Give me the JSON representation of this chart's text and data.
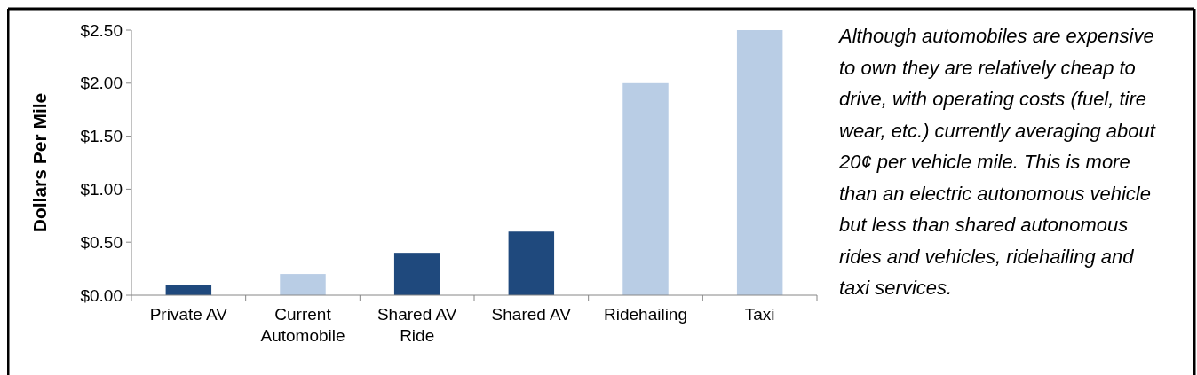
{
  "chart_data": {
    "type": "bar",
    "ylabel": "Dollars Per Mile",
    "categories": [
      "Private AV",
      "Current Automobile",
      "Shared AV Ride",
      "Shared AV",
      "Ridehailing",
      "Taxi"
    ],
    "values": [
      0.1,
      0.2,
      0.4,
      0.6,
      2.0,
      2.5
    ],
    "colors": [
      "#1f497d",
      "#b9cde5",
      "#1f497d",
      "#1f497d",
      "#b9cde5",
      "#b9cde5"
    ],
    "ylim": [
      0,
      2.5
    ],
    "yticks": [
      {
        "value": 0,
        "label": "$0.00"
      },
      {
        "value": 0.5,
        "label": "$0.50"
      },
      {
        "value": 1,
        "label": "$1.00"
      },
      {
        "value": 1.5,
        "label": "$1.50"
      },
      {
        "value": 2,
        "label": "$2.00"
      },
      {
        "value": 2.5,
        "label": "$2.50"
      }
    ],
    "grid": false,
    "annotations": [
      "Although automobiles are expensive to own they are relatively cheap to drive, with operating costs (fuel, tire wear, etc.) currently averaging about 20¢ per vehicle mile. This is more than an electric autonomous vehicle but less than shared autonomous rides and vehicles, ridehailing and taxi services."
    ]
  }
}
